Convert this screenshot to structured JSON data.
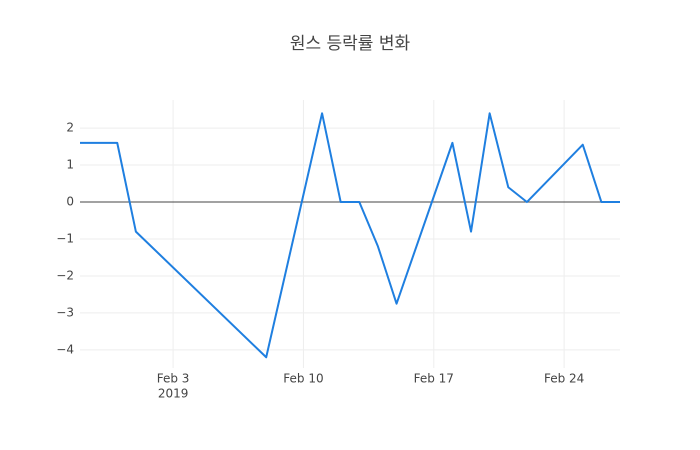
{
  "chart_data": {
    "type": "line",
    "title": "원스 등락률 변화",
    "x": [
      "2019-01-29",
      "2019-01-31",
      "2019-02-01",
      "2019-02-08",
      "2019-02-11",
      "2019-02-12",
      "2019-02-13",
      "2019-02-14",
      "2019-02-15",
      "2019-02-18",
      "2019-02-19",
      "2019-02-20",
      "2019-02-21",
      "2019-02-22",
      "2019-02-25",
      "2019-02-26",
      "2019-02-27"
    ],
    "series": [
      {
        "color": "#1f7fe0",
        "values": [
          1.6,
          1.6,
          -0.8,
          -4.2,
          2.4,
          0,
          0,
          -1.2,
          -2.75,
          1.6,
          -0.8,
          2.4,
          0.4,
          0,
          1.55,
          0,
          0
        ]
      }
    ],
    "xlim": [
      "2019-01-29",
      "2019-02-27"
    ],
    "xticks": [
      {
        "value": "2019-02-03",
        "label": "Feb 3"
      },
      {
        "value": "2019-02-10",
        "label": "Feb 10"
      },
      {
        "value": "2019-02-17",
        "label": "Feb 17"
      },
      {
        "value": "2019-02-24",
        "label": "Feb 24"
      }
    ],
    "x_year": "2019",
    "ylim": [
      -4.49,
      2.76
    ],
    "yticks": [
      {
        "value": -4,
        "label": "−4"
      },
      {
        "value": -3,
        "label": "−3"
      },
      {
        "value": -2,
        "label": "−2"
      },
      {
        "value": -1,
        "label": "−1"
      },
      0,
      1,
      2
    ],
    "grid": true,
    "zeroline": true
  }
}
